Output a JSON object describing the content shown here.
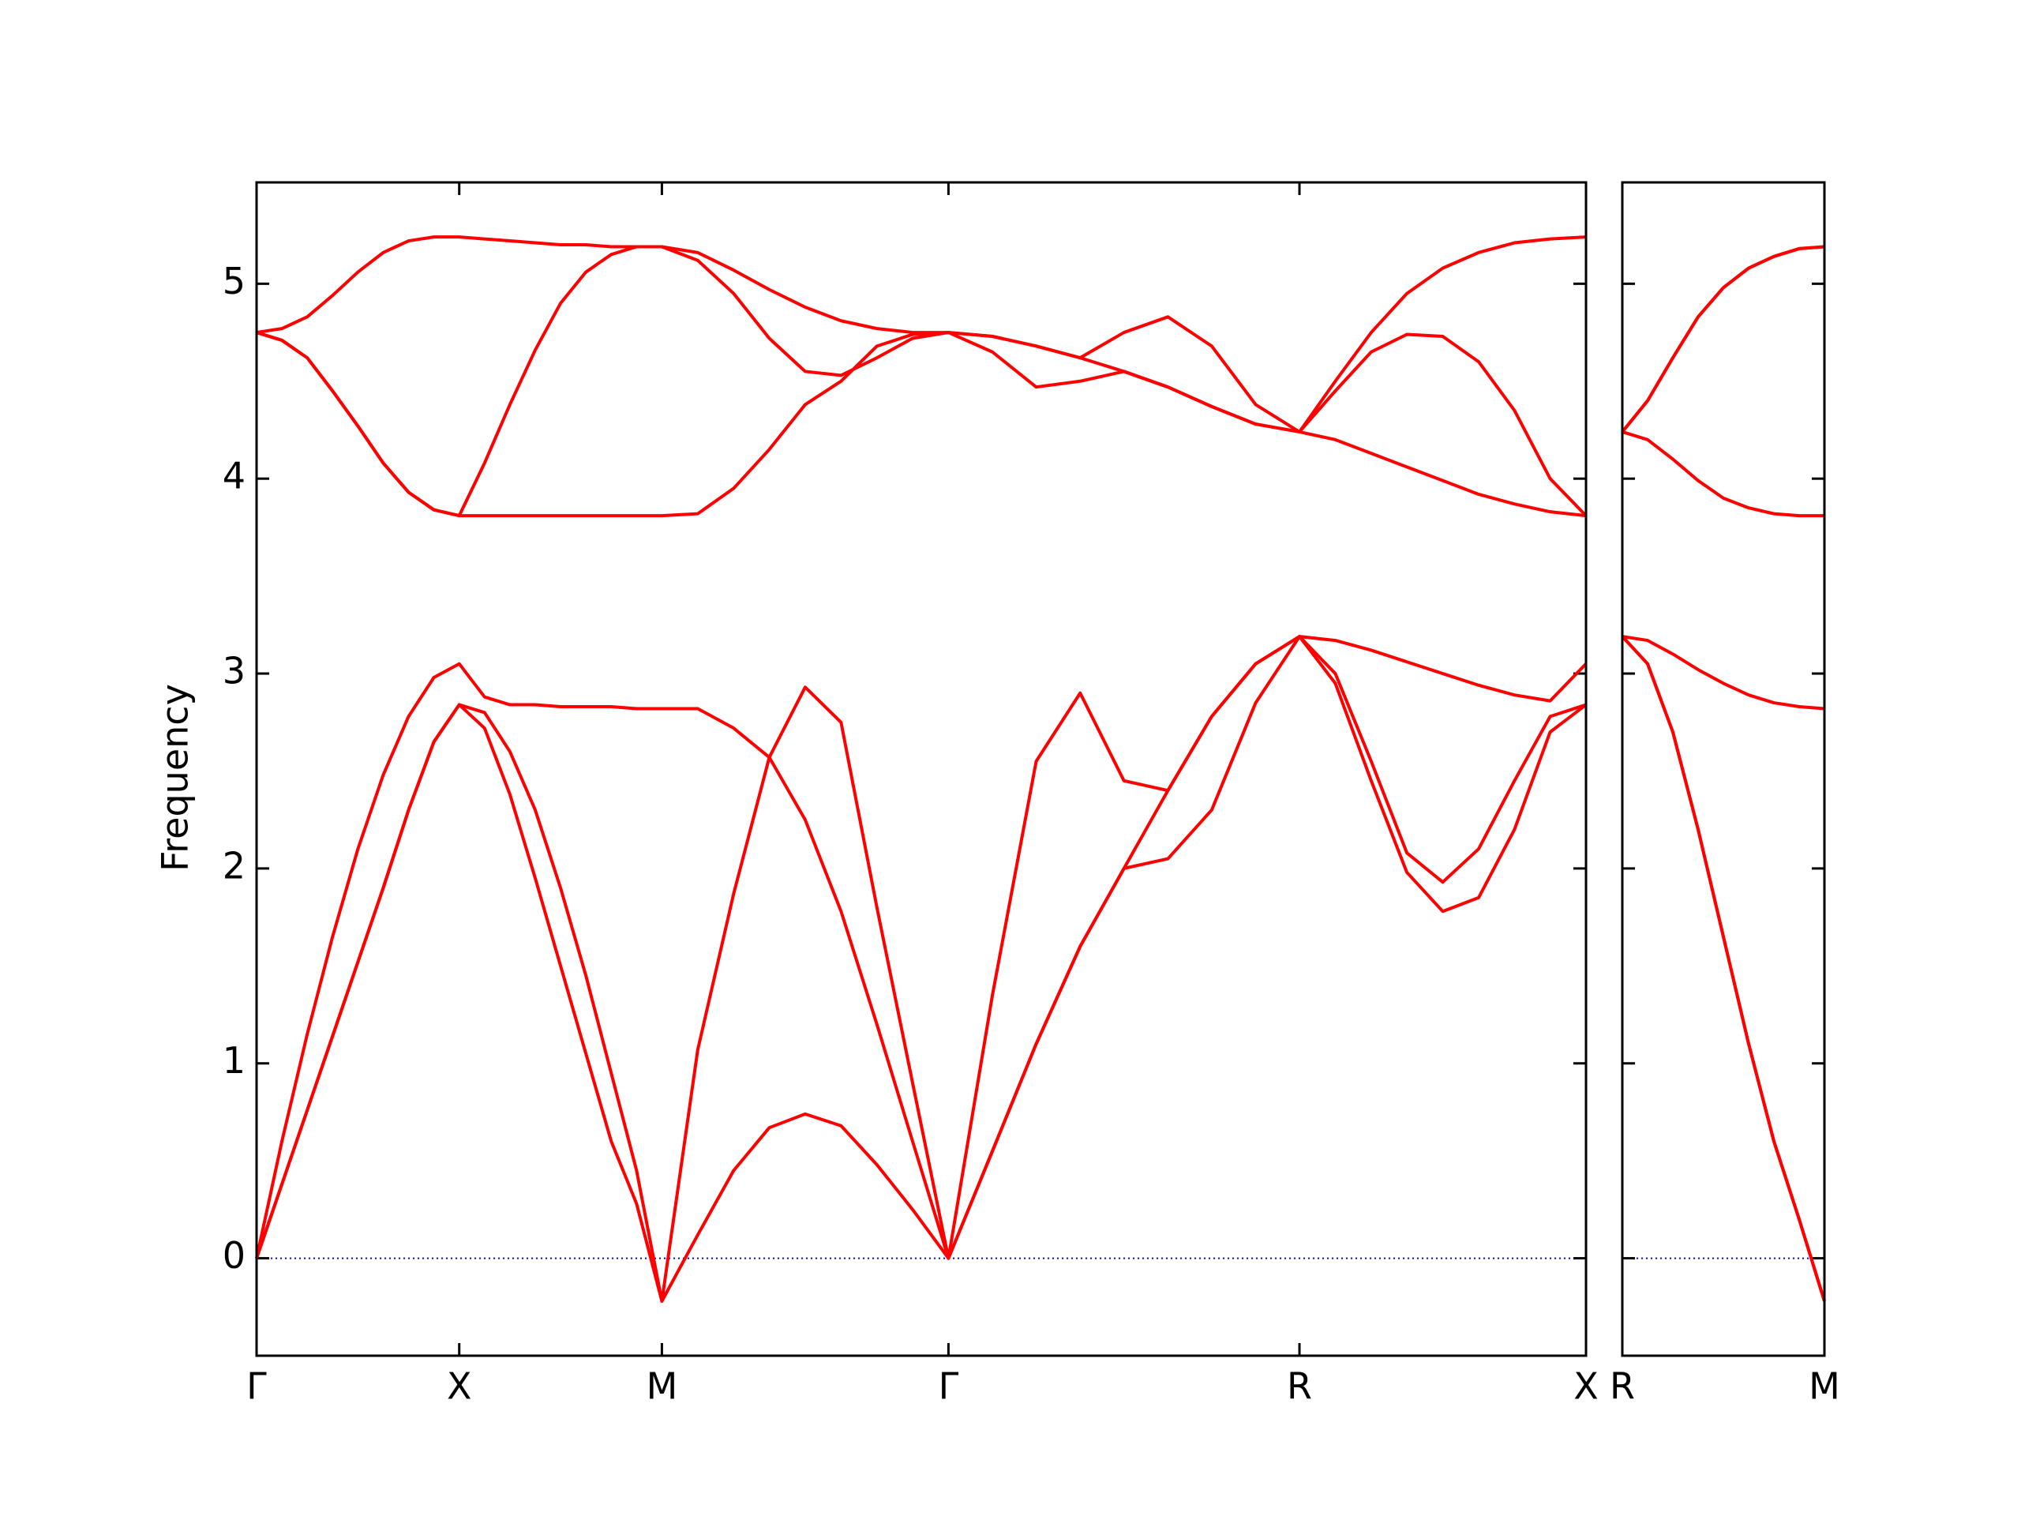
{
  "chart_data": [
    {
      "type": "line",
      "ylabel": "Frequency",
      "x": [
        0,
        0.125,
        0.25,
        0.375,
        0.5,
        0.625,
        0.75,
        0.875,
        1,
        1.125,
        1.25,
        1.375,
        1.5,
        1.625,
        1.75,
        1.875,
        2,
        2.177,
        2.354,
        2.53,
        2.707,
        2.884,
        3.061,
        3.237,
        3.414,
        3.631,
        3.847,
        4.064,
        4.28,
        4.497,
        4.713,
        4.93,
        5.146,
        5.323,
        5.5,
        5.676,
        5.853,
        6.03,
        6.207,
        6.383,
        6.56
      ],
      "xlim": [
        0,
        6.56
      ],
      "xticks": [
        {
          "value": 0,
          "label": "Γ"
        },
        {
          "value": 1,
          "label": "X"
        },
        {
          "value": 2,
          "label": "M"
        },
        {
          "value": 3.414,
          "label": "Γ"
        },
        {
          "value": 5.146,
          "label": "R"
        },
        {
          "value": 6.56,
          "label": "X"
        }
      ],
      "ylim": [
        -0.5,
        5.52
      ],
      "yticks": [
        0,
        1,
        2,
        3,
        4,
        5
      ],
      "series": [
        {
          "color": "#ff0000",
          "values": [
            0,
            0.38,
            0.76,
            1.14,
            1.52,
            1.9,
            2.3,
            2.65,
            2.84,
            2.72,
            2.38,
            1.95,
            1.5,
            1.05,
            0.6,
            0.28,
            -0.22,
            0.12,
            0.45,
            0.67,
            0.74,
            0.68,
            0.48,
            0.25,
            0,
            0.55,
            1.1,
            1.6,
            2.0,
            2.05,
            2.3,
            2.85,
            3.19,
            2.95,
            2.45,
            1.98,
            1.78,
            1.85,
            2.2,
            2.7,
            2.84
          ]
        },
        {
          "color": "#ff0000",
          "values": [
            0,
            0.38,
            0.76,
            1.14,
            1.52,
            1.9,
            2.3,
            2.65,
            2.84,
            2.8,
            2.6,
            2.3,
            1.9,
            1.45,
            0.95,
            0.45,
            -0.22,
            1.07,
            1.87,
            2.57,
            2.25,
            1.78,
            1.2,
            0.6,
            0,
            0.55,
            1.1,
            1.6,
            2.0,
            2.4,
            2.78,
            3.05,
            3.19,
            3.0,
            2.55,
            2.08,
            1.93,
            2.1,
            2.45,
            2.78,
            2.84
          ]
        },
        {
          "color": "#ff0000",
          "values": [
            0,
            0.6,
            1.15,
            1.65,
            2.1,
            2.48,
            2.78,
            2.98,
            3.05,
            2.88,
            2.84,
            2.84,
            2.83,
            2.83,
            2.83,
            2.82,
            2.82,
            2.82,
            2.72,
            2.57,
            2.93,
            2.75,
            1.8,
            0.9,
            0,
            1.35,
            2.55,
            2.9,
            2.45,
            2.4,
            2.78,
            3.05,
            3.19,
            3.17,
            3.12,
            3.06,
            3.0,
            2.94,
            2.89,
            2.86,
            3.05
          ]
        },
        {
          "color": "#ff0000",
          "values": [
            4.75,
            4.71,
            4.62,
            4.45,
            4.27,
            4.08,
            3.93,
            3.84,
            3.81,
            3.81,
            3.81,
            3.81,
            3.81,
            3.81,
            3.81,
            3.81,
            3.81,
            3.82,
            3.95,
            4.15,
            4.38,
            4.5,
            4.68,
            4.74,
            4.75,
            4.65,
            4.47,
            4.5,
            4.55,
            4.47,
            4.37,
            4.28,
            4.24,
            4.2,
            4.13,
            4.06,
            3.99,
            3.92,
            3.87,
            3.83,
            3.81
          ]
        },
        {
          "color": "#ff0000",
          "values": [
            4.75,
            4.71,
            4.62,
            4.45,
            4.27,
            4.08,
            3.93,
            3.84,
            3.81,
            4.08,
            4.38,
            4.66,
            4.9,
            5.06,
            5.15,
            5.19,
            5.19,
            5.12,
            4.95,
            4.72,
            4.55,
            4.53,
            4.62,
            4.72,
            4.75,
            4.73,
            4.68,
            4.62,
            4.55,
            4.47,
            4.37,
            4.28,
            4.24,
            4.45,
            4.65,
            4.74,
            4.73,
            4.6,
            4.35,
            4.0,
            3.81
          ]
        },
        {
          "color": "#ff0000",
          "values": [
            4.75,
            4.77,
            4.83,
            4.94,
            5.06,
            5.16,
            5.22,
            5.24,
            5.24,
            5.23,
            5.22,
            5.21,
            5.2,
            5.2,
            5.19,
            5.19,
            5.19,
            5.16,
            5.07,
            4.97,
            4.88,
            4.81,
            4.77,
            4.75,
            4.75,
            4.73,
            4.68,
            4.62,
            4.75,
            4.83,
            4.68,
            4.38,
            4.24,
            4.5,
            4.75,
            4.95,
            5.08,
            5.16,
            5.21,
            5.23,
            5.24
          ]
        }
      ]
    },
    {
      "type": "line",
      "x": [
        0,
        0.125,
        0.25,
        0.375,
        0.5,
        0.625,
        0.75,
        0.875,
        1
      ],
      "xlim": [
        0,
        1
      ],
      "xticks": [
        {
          "value": 0,
          "label": "R"
        },
        {
          "value": 1,
          "label": "M"
        }
      ],
      "ylim": [
        -0.5,
        5.52
      ],
      "yticks": [
        0,
        1,
        2,
        3,
        4,
        5
      ],
      "series": [
        {
          "color": "#ff0000",
          "values": [
            3.19,
            3.05,
            2.7,
            2.2,
            1.65,
            1.1,
            0.6,
            0.2,
            -0.22
          ]
        },
        {
          "color": "#ff0000",
          "values": [
            3.19,
            3.05,
            2.7,
            2.2,
            1.65,
            1.1,
            0.6,
            0.2,
            -0.22
          ]
        },
        {
          "color": "#ff0000",
          "values": [
            3.19,
            3.17,
            3.1,
            3.02,
            2.95,
            2.89,
            2.85,
            2.83,
            2.82
          ]
        },
        {
          "color": "#ff0000",
          "values": [
            4.24,
            4.2,
            4.1,
            3.99,
            3.9,
            3.85,
            3.82,
            3.81,
            3.81
          ]
        },
        {
          "color": "#ff0000",
          "values": [
            4.24,
            4.4,
            4.62,
            4.83,
            4.98,
            5.08,
            5.14,
            5.18,
            5.19
          ]
        },
        {
          "color": "#ff0000",
          "values": [
            4.24,
            4.4,
            4.62,
            4.83,
            4.98,
            5.08,
            5.14,
            5.18,
            5.19
          ]
        }
      ]
    }
  ]
}
